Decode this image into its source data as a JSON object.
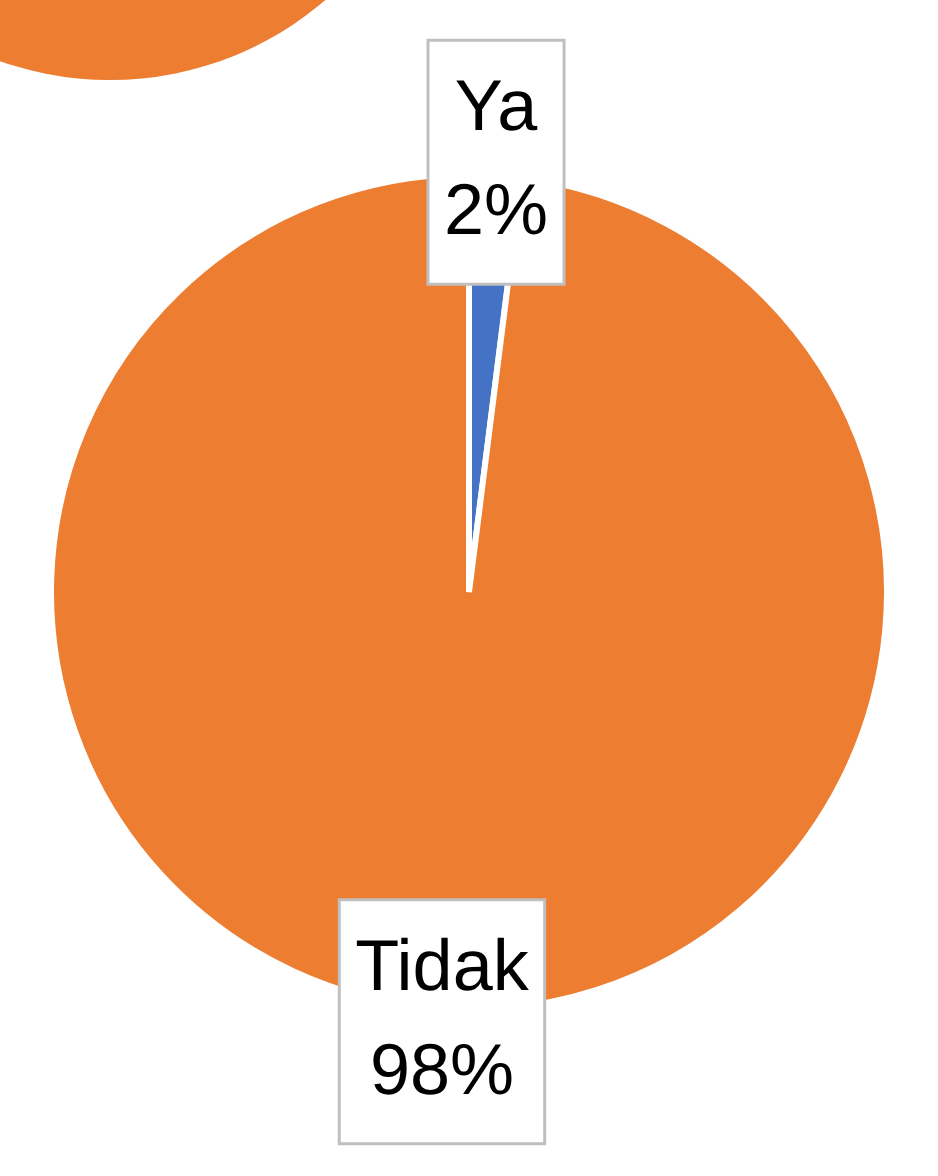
{
  "chart_data": {
    "type": "pie",
    "categories": [
      "Ya",
      "Tidak"
    ],
    "values": [
      2,
      98
    ],
    "colors": [
      "#4472c4",
      "#ed7d31"
    ],
    "value_labels": [
      "2%",
      "98%"
    ],
    "legend": false
  }
}
